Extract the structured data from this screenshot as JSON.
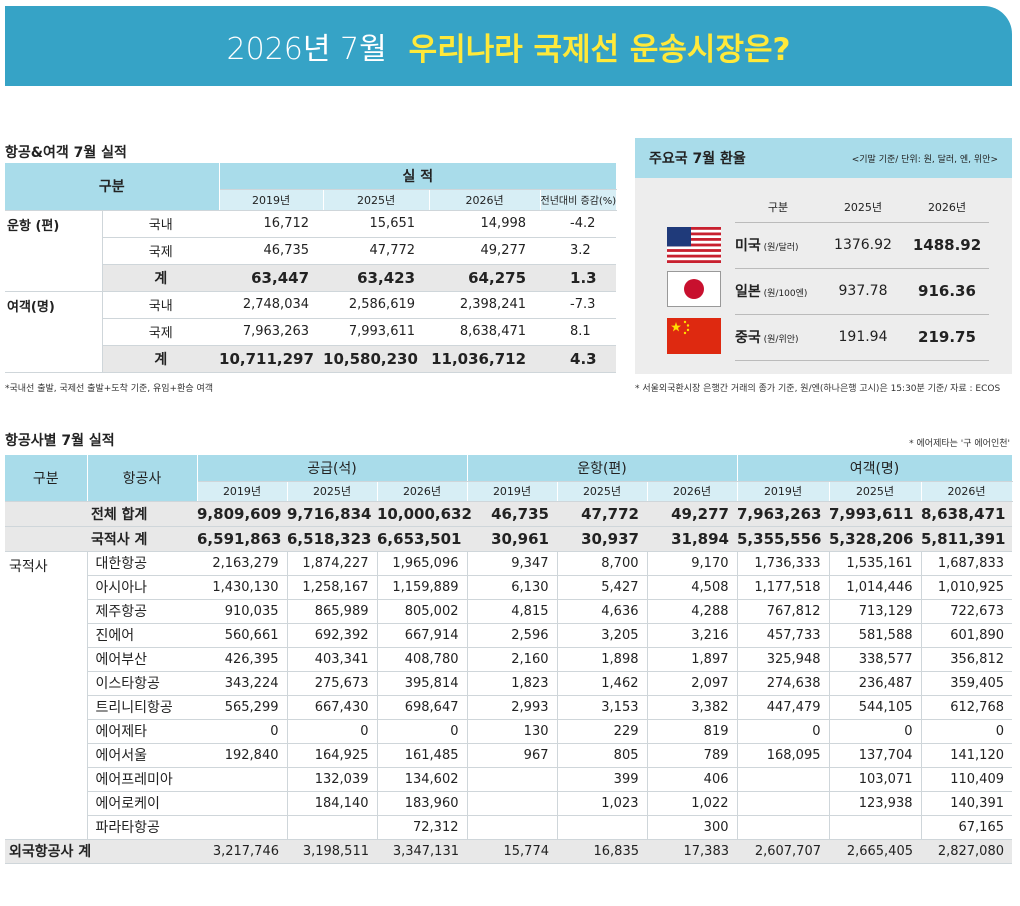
{
  "banner": {
    "year": "2026년 7월",
    "headline": "우리나라 국제선 운송시장은?"
  },
  "section1": {
    "title": "항공&여객 7월 실적",
    "h_category": "구분",
    "h_perf": "실 적",
    "years": [
      "2019년",
      "2025년",
      "2026년"
    ],
    "h_change": "전년대비 증감(%)",
    "groups": [
      {
        "label": "운항 (편)",
        "rows": [
          {
            "sub": "국내",
            "v": [
              "16,712",
              "15,651",
              "14,998"
            ],
            "chg": "-4.2"
          },
          {
            "sub": "국제",
            "v": [
              "46,735",
              "47,772",
              "49,277"
            ],
            "chg": "3.2"
          },
          {
            "sub": "계",
            "v": [
              "63,447",
              "63,423",
              "64,275"
            ],
            "chg": "1.3"
          }
        ]
      },
      {
        "label": "여객(명)",
        "rows": [
          {
            "sub": "국내",
            "v": [
              "2,748,034",
              "2,586,619",
              "2,398,241"
            ],
            "chg": "-7.3"
          },
          {
            "sub": "국제",
            "v": [
              "7,963,263",
              "7,993,611",
              "8,638,471"
            ],
            "chg": "8.1"
          },
          {
            "sub": "계",
            "v": [
              "10,711,297",
              "10,580,230",
              "11,036,712"
            ],
            "chg": "4.3"
          }
        ]
      }
    ],
    "note": "*국내선 출발, 국제선 출발+도착 기준, 유임+환승 여객"
  },
  "fx": {
    "title": "주요국 7월 환율",
    "subtitle": "<기말 기준/ 단위:  원, 달러, 엔, 위안>",
    "h_category": "구분",
    "years": [
      "2025년",
      "2026년"
    ],
    "rows": [
      {
        "country": "미국",
        "unit": "(원/달러)",
        "v2025": "1376.92",
        "v2026": "1488.92",
        "flag": "us-flag-icon"
      },
      {
        "country": "일본",
        "unit": "(원/100엔)",
        "v2025": "937.78",
        "v2026": "916.36",
        "flag": "japan-flag-icon"
      },
      {
        "country": "중국",
        "unit": "(원/위안)",
        "v2025": "191.94",
        "v2026": "219.75",
        "flag": "china-flag-icon"
      }
    ],
    "note": "* 서울외국환시장 은행간 거래의 종가 기준, 원/엔(하나은행 고시)은 15:30분 기준/ 자료 : ECOS"
  },
  "section2": {
    "title": "항공사별 7월 실적",
    "note": "* 에어제타는 '구 에어인천'",
    "h_category": "구분",
    "h_airline": "항공사",
    "h_groups": [
      "공급(석)",
      "운항(편)",
      "여객(명)"
    ],
    "years": [
      "2019년",
      "2025년",
      "2026년",
      "2019년",
      "2025년",
      "2026년",
      "2019년",
      "2025년",
      "2026년"
    ],
    "total": {
      "label": "전체 합계",
      "v": [
        "9,809,609",
        "9,716,834",
        "10,000,632",
        "46,735",
        "47,772",
        "49,277",
        "7,963,263",
        "7,993,611",
        "8,638,471"
      ]
    },
    "domestic_total": {
      "label": "국적사 계",
      "v": [
        "6,591,863",
        "6,518,323",
        "6,653,501",
        "30,961",
        "30,937",
        "31,894",
        "5,355,556",
        "5,328,206",
        "5,811,391"
      ]
    },
    "domestic_label": "국적사",
    "airlines": [
      {
        "name": "대한항공",
        "v": [
          "2,163,279",
          "1,874,227",
          "1,965,096",
          "9,347",
          "8,700",
          "9,170",
          "1,736,333",
          "1,535,161",
          "1,687,833"
        ]
      },
      {
        "name": "아시아나",
        "v": [
          "1,430,130",
          "1,258,167",
          "1,159,889",
          "6,130",
          "5,427",
          "4,508",
          "1,177,518",
          "1,014,446",
          "1,010,925"
        ]
      },
      {
        "name": "제주항공",
        "v": [
          "910,035",
          "865,989",
          "805,002",
          "4,815",
          "4,636",
          "4,288",
          "767,812",
          "713,129",
          "722,673"
        ]
      },
      {
        "name": "진에어",
        "v": [
          "560,661",
          "692,392",
          "667,914",
          "2,596",
          "3,205",
          "3,216",
          "457,733",
          "581,588",
          "601,890"
        ]
      },
      {
        "name": "에어부산",
        "v": [
          "426,395",
          "403,341",
          "408,780",
          "2,160",
          "1,898",
          "1,897",
          "325,948",
          "338,577",
          "356,812"
        ]
      },
      {
        "name": "이스타항공",
        "v": [
          "343,224",
          "275,673",
          "395,814",
          "1,823",
          "1,462",
          "2,097",
          "274,638",
          "236,487",
          "359,405"
        ]
      },
      {
        "name": "트리니티항공",
        "v": [
          "565,299",
          "667,430",
          "698,647",
          "2,993",
          "3,153",
          "3,382",
          "447,479",
          "544,105",
          "612,768"
        ]
      },
      {
        "name": "에어제타",
        "v": [
          "0",
          "0",
          "0",
          "130",
          "229",
          "819",
          "0",
          "0",
          "0"
        ]
      },
      {
        "name": "에어서울",
        "v": [
          "192,840",
          "164,925",
          "161,485",
          "967",
          "805",
          "789",
          "168,095",
          "137,704",
          "141,120"
        ]
      },
      {
        "name": "에어프레미아",
        "v": [
          "",
          "132,039",
          "134,602",
          "",
          "399",
          "406",
          "",
          "103,071",
          "110,409"
        ]
      },
      {
        "name": "에어로케이",
        "v": [
          "",
          "184,140",
          "183,960",
          "",
          "1,023",
          "1,022",
          "",
          "123,938",
          "140,391"
        ]
      },
      {
        "name": "파라타항공",
        "v": [
          "",
          "",
          "72,312",
          "",
          "",
          "300",
          "",
          "",
          "67,165"
        ]
      }
    ],
    "foreign_total": {
      "label": "외국항공사 계",
      "v": [
        "3,217,746",
        "3,198,511",
        "3,347,131",
        "15,774",
        "16,835",
        "17,383",
        "2,607,707",
        "2,665,405",
        "2,827,080"
      ]
    }
  }
}
